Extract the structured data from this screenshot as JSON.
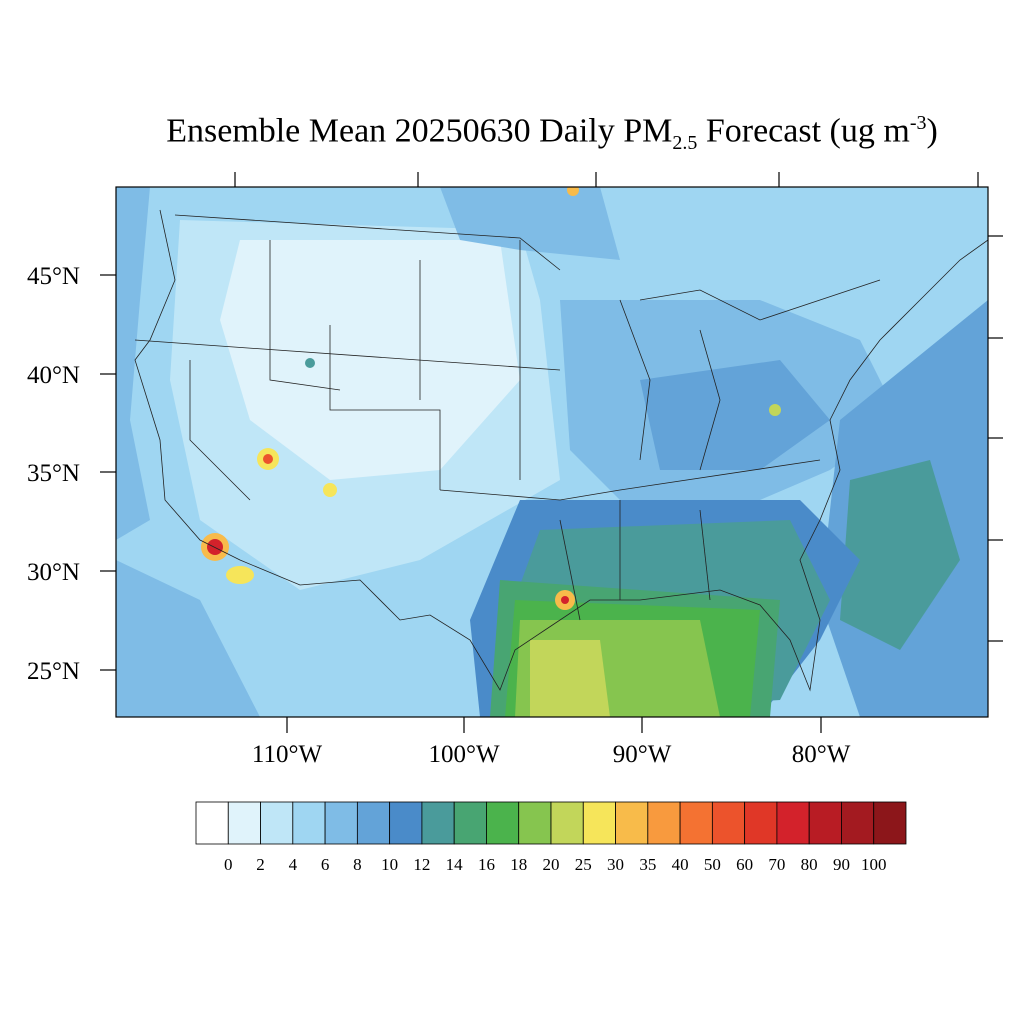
{
  "title": {
    "prefix": "Ensemble Mean 20250630 Daily PM",
    "sub": "2.5",
    "middle": " Forecast (ug m",
    "sup": "-3",
    "suffix": ")"
  },
  "map": {
    "region": "Contiguous United States",
    "latitude_labels": [
      "45°N",
      "40°N",
      "35°N",
      "30°N",
      "25°N"
    ],
    "longitude_labels": [
      "110°W",
      "100°W",
      "90°W",
      "80°W"
    ]
  },
  "colorbar": {
    "levels": [
      "0",
      "2",
      "4",
      "6",
      "8",
      "10",
      "12",
      "14",
      "16",
      "18",
      "20",
      "25",
      "30",
      "35",
      "40",
      "50",
      "60",
      "70",
      "80",
      "90",
      "100"
    ],
    "colors": [
      "#ffffff",
      "#e0f3fb",
      "#bfe6f7",
      "#9fd6f2",
      "#7fbce6",
      "#63a3d8",
      "#4a8bc9",
      "#4a9b9b",
      "#48a572",
      "#4bb34c",
      "#86c54f",
      "#c2d65a",
      "#f6e55a",
      "#f8bb4a",
      "#f89a3e",
      "#f47232",
      "#ec532c",
      "#e03727",
      "#d3222b",
      "#b81c24",
      "#a31a20",
      "#8c161a"
    ]
  },
  "colors": {
    "frame": "#000000",
    "boundary": "#222222"
  }
}
